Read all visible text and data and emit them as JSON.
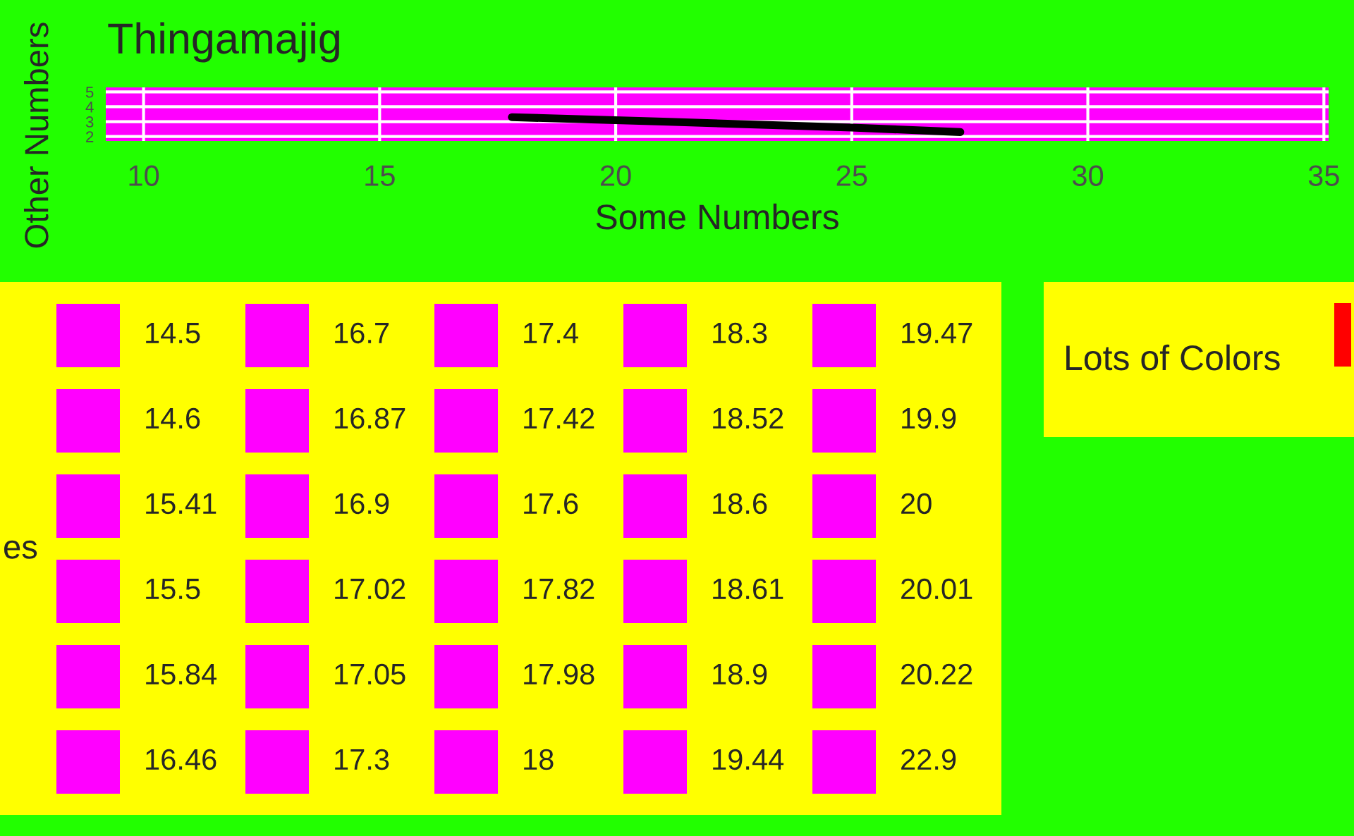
{
  "chart_data": {
    "type": "line",
    "title": "Thingamajig",
    "xlabel": "Some Numbers",
    "ylabel": "Other Numbers",
    "series": [
      {
        "color": "#000000",
        "x": [
          17.8,
          21,
          25,
          27.3
        ],
        "values": [
          3.3,
          3.0,
          2.6,
          2.3
        ]
      }
    ],
    "xlim": [
      9.2,
      35.1
    ],
    "xticks": [
      10,
      15,
      20,
      25,
      30,
      35
    ],
    "ylim": [
      1.7,
      5.3
    ],
    "yticks": [
      2,
      3,
      4,
      5
    ],
    "grid": true,
    "line_style": "solid",
    "marker": "none",
    "legend_title": "es",
    "annotations": [
      "14.5",
      "14.6",
      "15.41",
      "15.5",
      "15.84",
      "16.46",
      "16.7",
      "16.87",
      "16.9",
      "17.02",
      "17.05",
      "17.3",
      "17.4",
      "17.42",
      "17.6",
      "17.82",
      "17.98",
      "18",
      "18.3",
      "18.52",
      "18.6",
      "18.61",
      "18.9",
      "19.44",
      "19.47",
      "19.9",
      "20",
      "20.01",
      "20.22",
      "22.9",
      "Lots of Colors"
    ]
  }
}
